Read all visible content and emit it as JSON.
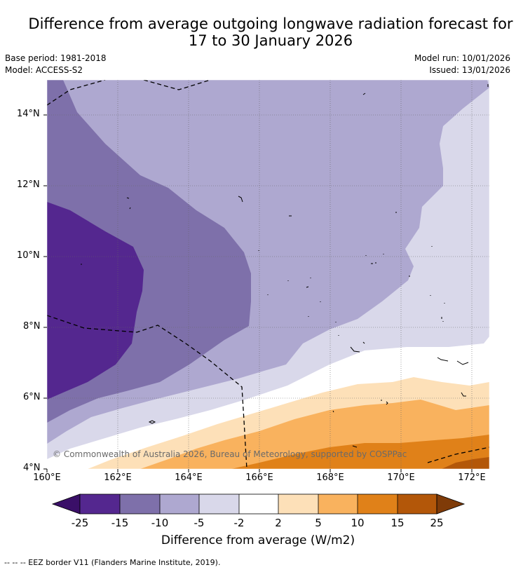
{
  "title": {
    "line1": "Difference from average outgoing longwave radiation forecast for",
    "line2": "17 to 30 January 2026"
  },
  "meta": {
    "base_period": "Base period: 1981-2018",
    "model": "Model: ACCESS-S2",
    "model_run": "Model run: 10/01/2026",
    "issued": "Issued: 13/01/2026"
  },
  "map": {
    "lat_labels": [
      "14°N",
      "12°N",
      "10°N",
      "8°N",
      "6°N",
      "4°N"
    ],
    "lon_labels": [
      "160°E",
      "162°E",
      "164°E",
      "166°E",
      "168°E",
      "170°E",
      "172°E"
    ],
    "copyright": "© Commonwealth of Australia 2026, Bureau of Meteorology, supported by COSPPac"
  },
  "colors": {
    "c_m25_m15": "#54278f",
    "c_m15_m10": "#7e70aa",
    "c_m10_m5": "#aea8d0",
    "c_m5_m2": "#d9d8ea",
    "c_m2_2": "#ffffff",
    "c_2_5": "#fde0b8",
    "c_5_10": "#f9b25e",
    "c_10_15": "#e08119",
    "c_15_25": "#b35709",
    "below_min": "#3a0f68",
    "above_max": "#7f3b08"
  },
  "colorbar": {
    "ticks": [
      "-25",
      "-15",
      "-10",
      "-5",
      "-2",
      "2",
      "5",
      "10",
      "15",
      "25"
    ],
    "label": "Difference from average (W/m2)"
  },
  "footnote": "--  --  -- EEZ border V11 (Flanders Marine Institute, 2019)."
}
